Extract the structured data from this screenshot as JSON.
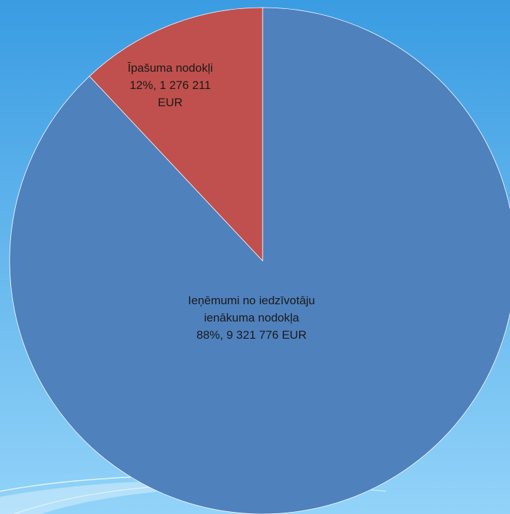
{
  "chart_data": {
    "type": "pie",
    "categories": [
      "Ieņēmumi no iedzīvotāju ienākuma nodokļa",
      "Īpašuma nodokļi"
    ],
    "values": [
      88,
      12
    ],
    "value_labels": [
      "88%, 9 321 776 EUR",
      "12%,  1 276 211 EUR"
    ],
    "colors": [
      "#4f81bd",
      "#c0504d"
    ]
  }
}
